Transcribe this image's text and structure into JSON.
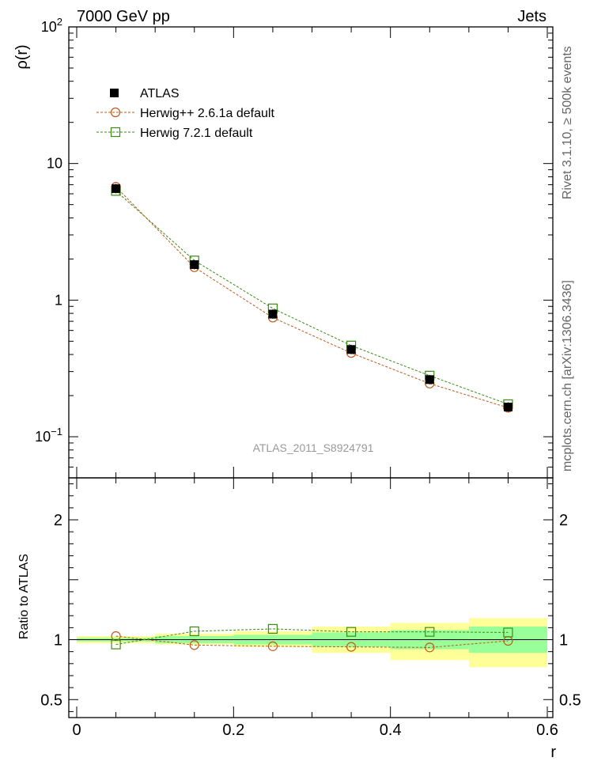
{
  "header": {
    "left": "7000 GeV pp",
    "right": "Jets"
  },
  "side_text": {
    "top": "Rivet 3.1.10, ≥ 500k events",
    "bottom": "mcplots.cern.ch [arXiv:1306.3436]"
  },
  "analysis_label": "ATLAS_2011_S8924791",
  "colors": {
    "atlas": "#000000",
    "herwigpp": "#c0581a",
    "herwig7": "#3a8a14",
    "band_yellow": "#ffff99",
    "band_green": "#99ff99"
  },
  "chart_data": [
    {
      "type": "scatter",
      "panel": "main",
      "ylabel": "ρ(r)",
      "yscale": "log",
      "ylim": [
        0.05,
        100
      ],
      "xlim": [
        -0.01,
        0.61
      ],
      "yticks": [
        {
          "value": 0.1,
          "base": "10",
          "exp": "−1"
        },
        {
          "value": 1,
          "base": "1",
          "exp": ""
        },
        {
          "value": 10,
          "base": "10",
          "exp": ""
        },
        {
          "value": 100,
          "base": "10",
          "exp": "2"
        }
      ],
      "legend": {
        "placement": "top-left",
        "entries": [
          "ATLAS",
          "Herwig++ 2.6.1a default",
          "Herwig 7.2.1 default"
        ]
      },
      "x": [
        0.05,
        0.15,
        0.25,
        0.35,
        0.45,
        0.55
      ],
      "series": [
        {
          "name": "ATLAS",
          "marker": "filled-square",
          "values": [
            6.55,
            1.82,
            0.79,
            0.435,
            0.262,
            0.165
          ]
        },
        {
          "name": "Herwig++ 2.6.1a default",
          "marker": "open-circle",
          "values": [
            6.75,
            1.74,
            0.745,
            0.41,
            0.245,
            0.163
          ]
        },
        {
          "name": "Herwig 7.2.1 default",
          "marker": "open-square",
          "values": [
            6.3,
            1.95,
            0.87,
            0.465,
            0.28,
            0.173
          ]
        }
      ]
    },
    {
      "type": "scatter",
      "panel": "ratio",
      "ylabel": "Ratio to ATLAS",
      "xlabel": "r",
      "ylim": [
        0.35,
        2.35
      ],
      "yticks": [
        0.5,
        1,
        2
      ],
      "xticks": [
        0,
        0.2,
        0.4,
        0.6
      ],
      "x": [
        0.05,
        0.15,
        0.25,
        0.35,
        0.45,
        0.55
      ],
      "bins": [
        [
          0,
          0.1
        ],
        [
          0.1,
          0.2
        ],
        [
          0.2,
          0.3
        ],
        [
          0.3,
          0.4
        ],
        [
          0.4,
          0.5
        ],
        [
          0.5,
          0.6
        ]
      ],
      "band_yellow": [
        [
          0.97,
          1.03
        ],
        [
          0.96,
          1.05
        ],
        [
          0.94,
          1.07
        ],
        [
          0.89,
          1.11
        ],
        [
          0.83,
          1.14
        ],
        [
          0.77,
          1.18
        ]
      ],
      "band_green": [
        [
          0.985,
          1.015
        ],
        [
          0.97,
          1.03
        ],
        [
          0.96,
          1.04
        ],
        [
          0.94,
          1.06
        ],
        [
          0.92,
          1.08
        ],
        [
          0.89,
          1.11
        ]
      ],
      "series": [
        {
          "name": "Herwig++ 2.6.1a default",
          "marker": "open-circle",
          "values": [
            1.03,
            0.955,
            0.945,
            0.94,
            0.935,
            0.99
          ]
        },
        {
          "name": "Herwig 7.2.1 default",
          "marker": "open-square",
          "values": [
            0.96,
            1.07,
            1.09,
            1.065,
            1.065,
            1.06
          ]
        }
      ]
    }
  ]
}
